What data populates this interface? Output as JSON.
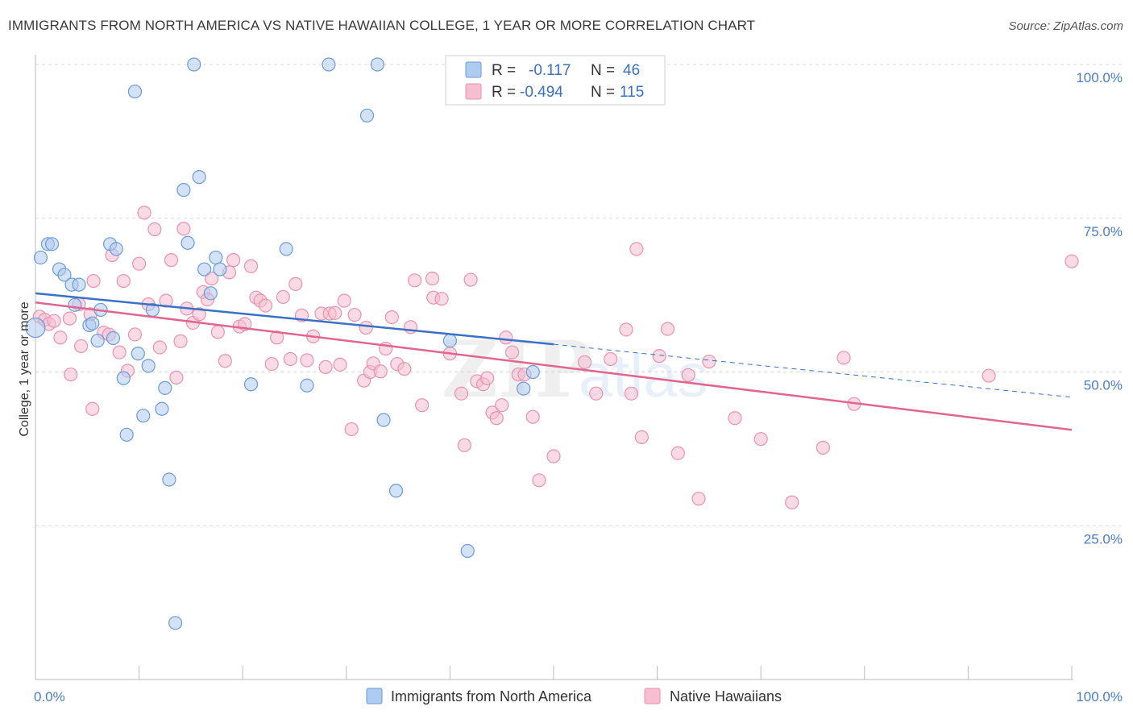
{
  "header": {
    "title": "IMMIGRANTS FROM NORTH AMERICA VS NATIVE HAWAIIAN COLLEGE, 1 YEAR OR MORE CORRELATION CHART",
    "source": "Source: ZipAtlas.com"
  },
  "colors": {
    "blue_fill": "#aecbf0",
    "blue_stroke": "#6b9bd8",
    "blue_line": "#3a70c8",
    "pink_fill": "#f6bed0",
    "pink_stroke": "#e892ad",
    "pink_line": "#e0668f",
    "grid": "#d9d9d9",
    "axis_text": "#4a7cc9"
  },
  "legend": {
    "rows": [
      {
        "r_label": "R =",
        "r_value": "-0.117",
        "n_label": "N =",
        "n_value": "46"
      },
      {
        "r_label": "R =",
        "r_value": "-0.494",
        "n_label": "N =",
        "n_value": "115"
      }
    ]
  },
  "watermark": {
    "zip": "ZIP",
    "atlas": "atlas"
  },
  "chart_data": {
    "type": "scatter",
    "title": "IMMIGRANTS FROM NORTH AMERICA VS NATIVE HAWAIIAN COLLEGE, 1 YEAR OR MORE CORRELATION CHART",
    "xlabel": "",
    "ylabel": "College, 1 year or more",
    "xlim": [
      0,
      100
    ],
    "ylim": [
      0,
      100
    ],
    "x_tick_labels": [
      "0.0%",
      "100.0%"
    ],
    "y_ticks": [
      25,
      50,
      75,
      100
    ],
    "y_tick_labels": [
      "25.0%",
      "50.0%",
      "75.0%",
      "100.0%"
    ],
    "grid": true,
    "legend_position": "top-center",
    "series": [
      {
        "name": "Immigrants from North America",
        "color": "#aecbf0",
        "r": -0.117,
        "n": 46,
        "trend": {
          "x_start": 0,
          "y_start": 62.8,
          "x_end": 50,
          "y_end": 54.5,
          "dashed_to_x": 100,
          "dashed_to_y": 45.9
        },
        "points": [
          [
            0.0,
            57.2
          ],
          [
            0.5,
            68.6
          ],
          [
            1.2,
            70.8
          ],
          [
            1.6,
            70.8
          ],
          [
            2.3,
            66.7
          ],
          [
            2.8,
            65.8
          ],
          [
            3.5,
            64.2
          ],
          [
            4.2,
            64.2
          ],
          [
            3.8,
            60.9
          ],
          [
            5.2,
            57.6
          ],
          [
            6.0,
            55.1
          ],
          [
            5.5,
            57.9
          ],
          [
            6.3,
            60.1
          ],
          [
            7.2,
            70.8
          ],
          [
            7.8,
            70.0
          ],
          [
            7.5,
            55.5
          ],
          [
            8.5,
            49.0
          ],
          [
            8.8,
            39.8
          ],
          [
            9.6,
            95.6
          ],
          [
            9.9,
            53.0
          ],
          [
            10.4,
            42.9
          ],
          [
            10.9,
            51.0
          ],
          [
            11.3,
            60.1
          ],
          [
            12.2,
            44.0
          ],
          [
            12.5,
            47.4
          ],
          [
            12.9,
            32.5
          ],
          [
            13.5,
            9.2
          ],
          [
            14.3,
            79.6
          ],
          [
            14.7,
            71.0
          ],
          [
            15.3,
            100.0
          ],
          [
            15.8,
            81.7
          ],
          [
            16.3,
            66.7
          ],
          [
            16.9,
            62.8
          ],
          [
            17.4,
            68.6
          ],
          [
            17.8,
            66.7
          ],
          [
            20.8,
            48.0
          ],
          [
            24.2,
            70.0
          ],
          [
            26.2,
            47.8
          ],
          [
            28.3,
            100.0
          ],
          [
            32.0,
            91.7
          ],
          [
            33.0,
            100.0
          ],
          [
            33.6,
            42.2
          ],
          [
            34.8,
            30.7
          ],
          [
            40.0,
            55.1
          ],
          [
            41.7,
            20.9
          ],
          [
            47.1,
            47.3
          ],
          [
            48.0,
            50.0
          ]
        ]
      },
      {
        "name": "Native Hawaiians",
        "color": "#f6bed0",
        "r": -0.494,
        "n": 115,
        "trend": {
          "x_start": 0,
          "y_start": 61.3,
          "x_end": 100,
          "y_end": 40.6
        },
        "points": [
          [
            0.4,
            59.0
          ],
          [
            0.9,
            58.5
          ],
          [
            1.3,
            57.8
          ],
          [
            1.8,
            58.3
          ],
          [
            2.4,
            55.6
          ],
          [
            3.3,
            58.7
          ],
          [
            3.4,
            49.6
          ],
          [
            4.2,
            61.0
          ],
          [
            4.4,
            54.2
          ],
          [
            5.3,
            59.4
          ],
          [
            5.5,
            44.0
          ],
          [
            5.6,
            64.8
          ],
          [
            6.6,
            56.4
          ],
          [
            7.1,
            56.1
          ],
          [
            7.4,
            69.0
          ],
          [
            8.1,
            53.2
          ],
          [
            8.5,
            64.8
          ],
          [
            8.9,
            50.2
          ],
          [
            9.6,
            56.1
          ],
          [
            10.0,
            67.6
          ],
          [
            10.5,
            75.9
          ],
          [
            10.9,
            61.0
          ],
          [
            11.5,
            73.2
          ],
          [
            12.0,
            54.0
          ],
          [
            12.6,
            61.6
          ],
          [
            13.1,
            68.2
          ],
          [
            13.6,
            49.1
          ],
          [
            14.0,
            55.0
          ],
          [
            14.3,
            73.3
          ],
          [
            14.6,
            60.3
          ],
          [
            15.2,
            58.0
          ],
          [
            15.8,
            59.4
          ],
          [
            16.2,
            63.0
          ],
          [
            16.6,
            61.8
          ],
          [
            17.0,
            65.2
          ],
          [
            17.6,
            56.5
          ],
          [
            18.3,
            51.8
          ],
          [
            18.7,
            66.2
          ],
          [
            19.1,
            68.2
          ],
          [
            19.7,
            57.4
          ],
          [
            20.2,
            57.8
          ],
          [
            20.8,
            67.2
          ],
          [
            21.3,
            62.1
          ],
          [
            21.7,
            61.6
          ],
          [
            22.2,
            60.8
          ],
          [
            22.8,
            51.3
          ],
          [
            23.3,
            55.6
          ],
          [
            23.9,
            62.2
          ],
          [
            24.6,
            52.1
          ],
          [
            25.1,
            64.3
          ],
          [
            25.7,
            59.2
          ],
          [
            26.2,
            51.9
          ],
          [
            26.8,
            55.8
          ],
          [
            27.6,
            59.5
          ],
          [
            28.0,
            50.8
          ],
          [
            28.4,
            59.5
          ],
          [
            28.9,
            59.6
          ],
          [
            29.4,
            51.2
          ],
          [
            29.8,
            61.6
          ],
          [
            30.5,
            40.7
          ],
          [
            30.8,
            59.3
          ],
          [
            31.7,
            48.6
          ],
          [
            31.9,
            57.2
          ],
          [
            32.3,
            50.0
          ],
          [
            32.6,
            51.4
          ],
          [
            33.3,
            50.1
          ],
          [
            33.8,
            53.8
          ],
          [
            34.4,
            58.9
          ],
          [
            34.9,
            51.3
          ],
          [
            35.6,
            50.5
          ],
          [
            36.2,
            57.3
          ],
          [
            36.6,
            64.9
          ],
          [
            37.3,
            44.6
          ],
          [
            38.3,
            65.2
          ],
          [
            38.4,
            62.1
          ],
          [
            39.2,
            61.9
          ],
          [
            40.0,
            53.0
          ],
          [
            41.1,
            46.5
          ],
          [
            41.4,
            38.1
          ],
          [
            42.0,
            65.0
          ],
          [
            42.6,
            48.5
          ],
          [
            43.2,
            48.0
          ],
          [
            43.6,
            49.0
          ],
          [
            44.1,
            43.4
          ],
          [
            44.5,
            42.5
          ],
          [
            45.0,
            44.6
          ],
          [
            45.4,
            55.6
          ],
          [
            46.0,
            53.2
          ],
          [
            46.6,
            49.6
          ],
          [
            47.2,
            49.6
          ],
          [
            48.0,
            42.7
          ],
          [
            48.6,
            32.4
          ],
          [
            50.0,
            36.3
          ],
          [
            53.0,
            51.6
          ],
          [
            54.1,
            46.5
          ],
          [
            55.5,
            52.1
          ],
          [
            57.0,
            56.9
          ],
          [
            57.5,
            46.5
          ],
          [
            58.0,
            70.0
          ],
          [
            58.5,
            39.4
          ],
          [
            60.2,
            52.6
          ],
          [
            61.0,
            57.0
          ],
          [
            62.0,
            36.8
          ],
          [
            63.0,
            49.5
          ],
          [
            64.0,
            29.4
          ],
          [
            65.0,
            51.7
          ],
          [
            67.5,
            42.5
          ],
          [
            70.0,
            39.1
          ],
          [
            73.0,
            28.8
          ],
          [
            76.0,
            37.7
          ],
          [
            78.0,
            52.3
          ],
          [
            79.0,
            44.8
          ],
          [
            92.0,
            49.4
          ],
          [
            100.0,
            68.0
          ]
        ]
      }
    ]
  }
}
